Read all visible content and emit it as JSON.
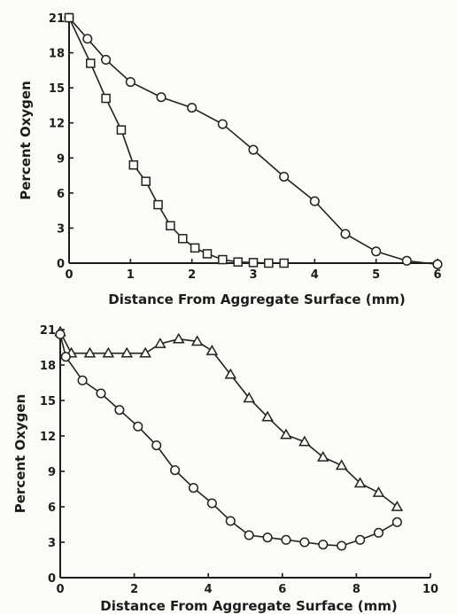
{
  "chart_data": [
    {
      "type": "line",
      "xlabel": "Distance From Aggregate Surface (mm)",
      "ylabel": "Percent Oxygen",
      "xlim": [
        0,
        6
      ],
      "ylim": [
        0,
        21
      ],
      "xticks": [
        0,
        1,
        2,
        3,
        4,
        5,
        6
      ],
      "yticks": [
        0,
        3,
        6,
        9,
        12,
        15,
        18,
        21
      ],
      "xtick_labels": [
        "0",
        "1",
        "2",
        "3",
        "4",
        "5",
        "6"
      ],
      "ytick_labels": [
        "0",
        "3",
        "6",
        "9",
        "12",
        "15",
        "18",
        "21"
      ],
      "series": [
        {
          "marker": "circle",
          "x": [
            0.0,
            0.3,
            0.6,
            1.0,
            1.5,
            2.0,
            2.5,
            3.0,
            3.5,
            4.0,
            4.5,
            5.0,
            5.5,
            6.0
          ],
          "y": [
            21.0,
            19.2,
            17.4,
            15.5,
            14.2,
            13.3,
            11.9,
            9.7,
            7.4,
            5.3,
            2.5,
            1.0,
            0.2,
            -0.1
          ]
        },
        {
          "marker": "square",
          "x": [
            0.0,
            0.35,
            0.6,
            0.85,
            1.05,
            1.25,
            1.45,
            1.65,
            1.85,
            2.05,
            2.25,
            2.5,
            2.75,
            3.0,
            3.25,
            3.5
          ],
          "y": [
            21.0,
            17.1,
            14.1,
            11.4,
            8.4,
            7.0,
            5.0,
            3.2,
            2.1,
            1.3,
            0.8,
            0.3,
            0.1,
            0.05,
            0.0,
            0.0
          ]
        }
      ]
    },
    {
      "type": "line",
      "xlabel": "Distance From Aggregate Surface (mm)",
      "ylabel": "Percent Oxygen",
      "xlim": [
        0,
        10
      ],
      "ylim": [
        0,
        21
      ],
      "xticks": [
        0,
        2,
        4,
        6,
        8,
        10
      ],
      "yticks": [
        0,
        3,
        6,
        9,
        12,
        15,
        18,
        21
      ],
      "xtick_labels": [
        "0",
        "2",
        "4",
        "6",
        "8",
        "10"
      ],
      "ytick_labels": [
        "0",
        "3",
        "6",
        "9",
        "12",
        "15",
        "18",
        "21"
      ],
      "series": [
        {
          "marker": "triangle",
          "x": [
            0.0,
            0.3,
            0.8,
            1.3,
            1.8,
            2.3,
            2.7,
            3.2,
            3.7,
            4.1,
            4.6,
            5.1,
            5.6,
            6.1,
            6.6,
            7.1,
            7.6,
            8.1,
            8.6,
            9.1
          ],
          "y": [
            20.8,
            19.0,
            19.0,
            19.0,
            19.0,
            19.0,
            19.8,
            20.2,
            20.0,
            19.2,
            17.2,
            15.2,
            13.6,
            12.1,
            11.5,
            10.2,
            9.5,
            8.0,
            7.2,
            6.0
          ]
        },
        {
          "marker": "circle",
          "x": [
            0.0,
            0.15,
            0.6,
            1.1,
            1.6,
            2.1,
            2.6,
            3.1,
            3.6,
            4.1,
            4.6,
            5.1,
            5.6,
            6.1,
            6.6,
            7.1,
            7.6,
            8.1,
            8.6,
            9.1
          ],
          "y": [
            20.6,
            18.7,
            16.7,
            15.6,
            14.2,
            12.8,
            11.2,
            9.1,
            7.6,
            6.3,
            4.8,
            3.6,
            3.4,
            3.2,
            3.0,
            2.8,
            2.7,
            3.2,
            3.8,
            4.7
          ]
        }
      ]
    }
  ]
}
